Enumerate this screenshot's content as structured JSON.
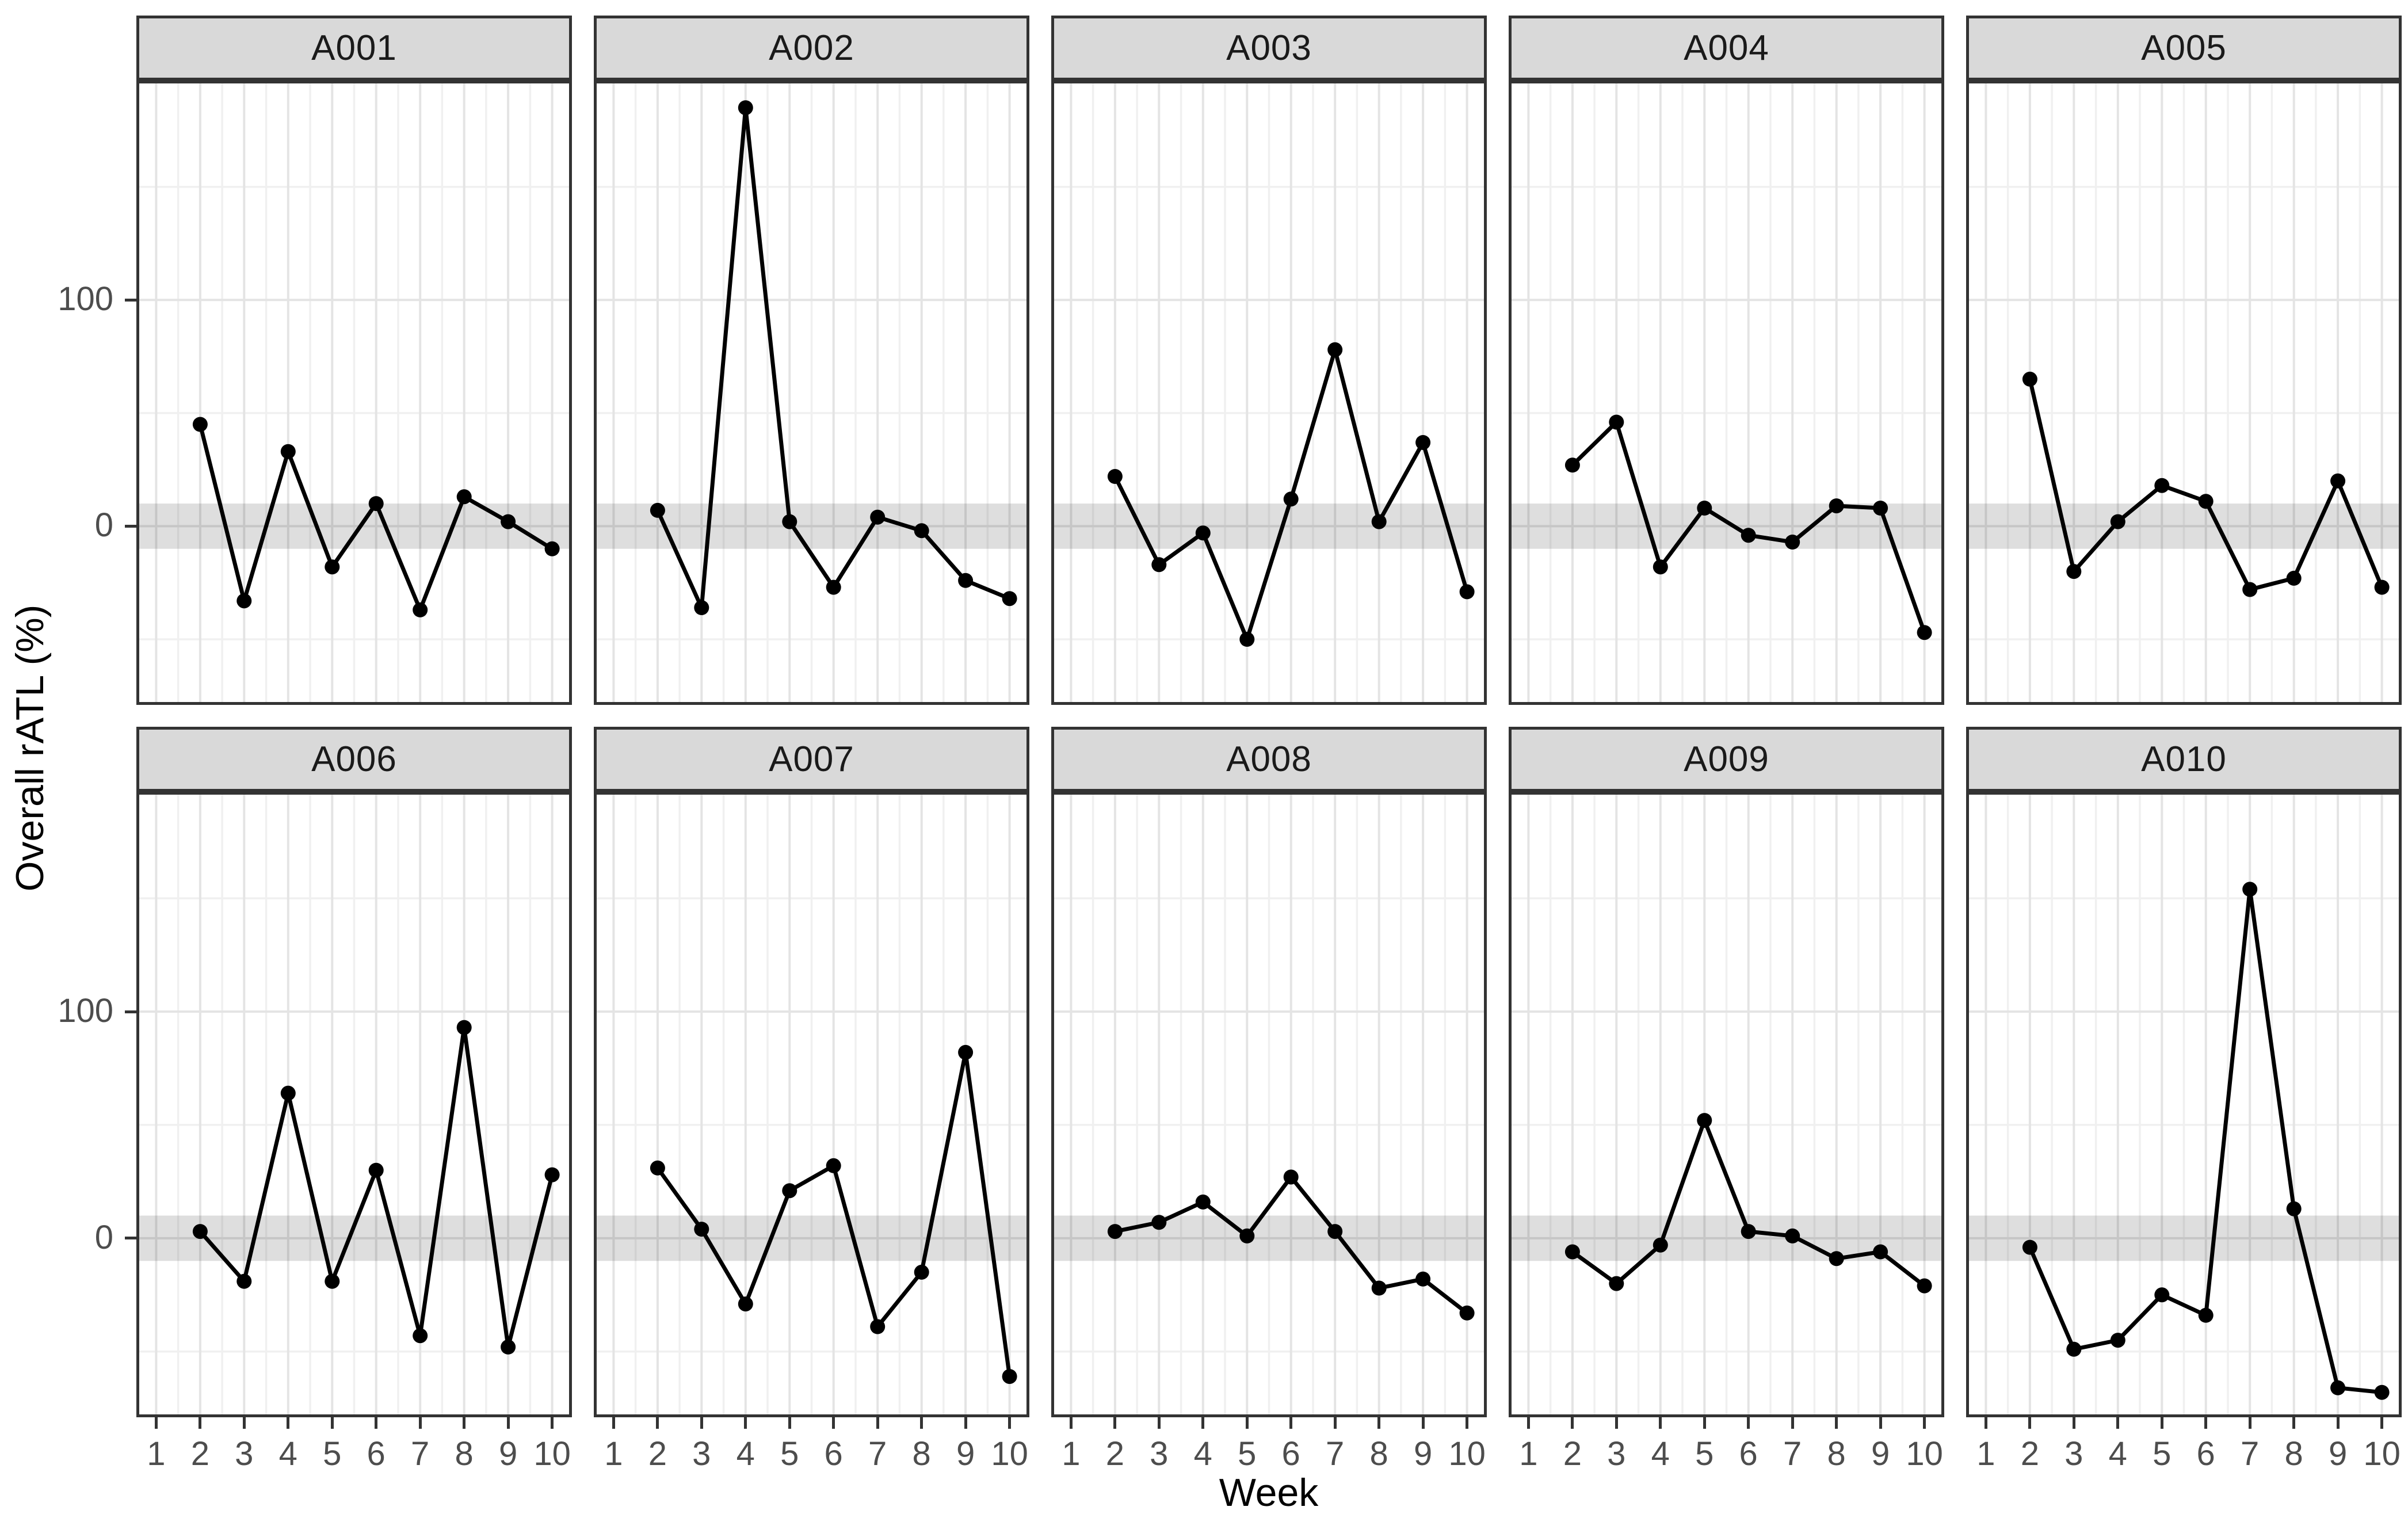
{
  "chart_data": {
    "type": "line",
    "title": "",
    "xlabel": "Week",
    "ylabel": "Overall rATL (%)",
    "layout": {
      "rows": 2,
      "cols": 5,
      "legend": "none",
      "grid": true
    },
    "xlim": [
      0.55,
      10.45
    ],
    "ylim": [
      -79,
      197
    ],
    "x_ticks": [
      1,
      2,
      3,
      4,
      5,
      6,
      7,
      8,
      9,
      10
    ],
    "x_tick_labels": [
      "1",
      "2",
      "3",
      "4",
      "5",
      "6",
      "7",
      "8",
      "9",
      "10"
    ],
    "y_ticks": [
      {
        "value": 100,
        "label": "100"
      },
      {
        "value": 0,
        "label": "0"
      }
    ],
    "grid_major_y": [
      0,
      100
    ],
    "grid_minor_y": [
      -50,
      50,
      150
    ],
    "grid_minor_x": [
      1.5,
      2.5,
      3.5,
      4.5,
      5.5,
      6.5,
      7.5,
      8.5,
      9.5
    ],
    "reference_band": {
      "ymin": -10,
      "ymax": 10
    },
    "weeks": [
      2,
      3,
      4,
      5,
      6,
      7,
      8,
      9,
      10
    ],
    "facets": [
      {
        "label": "A001",
        "values": [
          45,
          -33,
          33,
          -18,
          10,
          -37,
          13,
          2,
          -10
        ]
      },
      {
        "label": "A002",
        "values": [
          7,
          -36,
          185,
          2,
          -27,
          4,
          -2,
          -24,
          -32
        ]
      },
      {
        "label": "A003",
        "values": [
          22,
          -17,
          -3,
          -50,
          12,
          78,
          2,
          37,
          -29
        ]
      },
      {
        "label": "A004",
        "values": [
          27,
          46,
          -18,
          8,
          -4,
          -7,
          9,
          8,
          -47
        ]
      },
      {
        "label": "A005",
        "values": [
          65,
          -20,
          2,
          18,
          11,
          -28,
          -23,
          20,
          -27
        ]
      },
      {
        "label": "A006",
        "values": [
          3,
          -19,
          64,
          -19,
          30,
          -43,
          93,
          -48,
          28
        ]
      },
      {
        "label": "A007",
        "values": [
          31,
          4,
          -29,
          21,
          32,
          -39,
          -15,
          82,
          -61
        ]
      },
      {
        "label": "A008",
        "values": [
          3,
          7,
          16,
          1,
          27,
          3,
          -22,
          -18,
          -33
        ]
      },
      {
        "label": "A009",
        "values": [
          -6,
          -20,
          -3,
          52,
          3,
          1,
          -9,
          -6,
          -21
        ]
      },
      {
        "label": "A010",
        "values": [
          -4,
          -49,
          -45,
          -25,
          -34,
          154,
          13,
          -66,
          -68
        ]
      }
    ]
  },
  "colors": {
    "background": "#ffffff",
    "strip_fill": "#d9d9d9",
    "strip_text": "#1a1a1a",
    "panel_border": "#333333",
    "grid_major": "#e4e4e4",
    "grid_minor": "#f0f0f0",
    "reference_band": "rgba(0,0,0,0.13)",
    "line": "#000000",
    "point": "#000000",
    "tick_label": "#4d4d4d",
    "axis_title": "#000000"
  }
}
